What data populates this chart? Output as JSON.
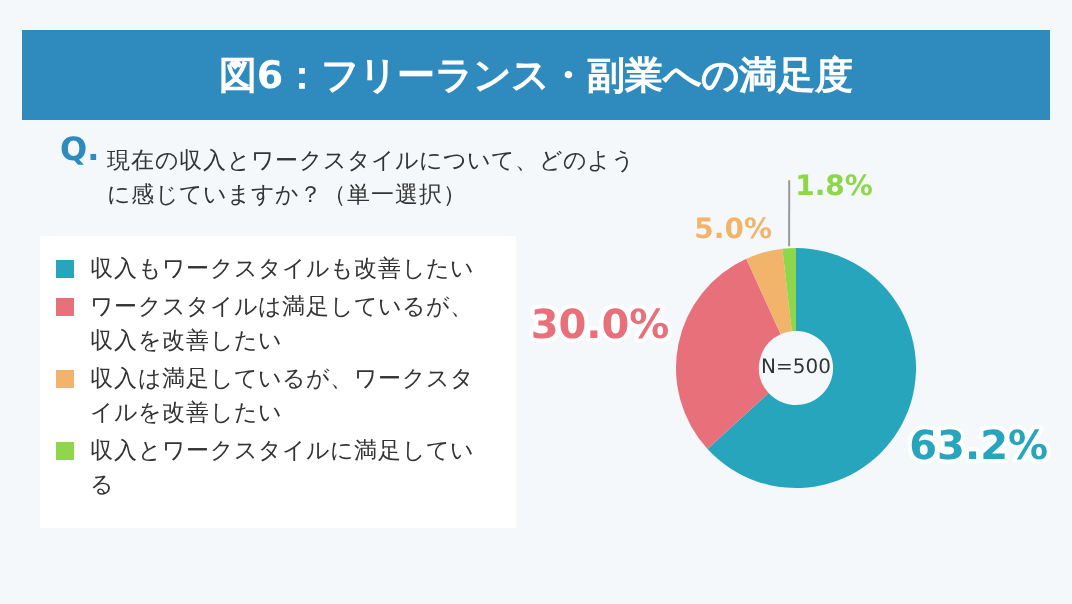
{
  "chart_data": {
    "type": "donut",
    "title": "図6：フリーランス・副業への満足度",
    "subtitle": "Q. 現在の収入とワークスタイルについて、どのように感じていますか？（単一選択）",
    "categories": [
      "収入もワークスタイルも改善したい",
      "ワークスタイルは満足しているが、収入を改善したい",
      "収入は満足しているが、ワークスタイルを改善したい",
      "収入とワークスタイルに満足している"
    ],
    "values": [
      63.2,
      30.0,
      5.0,
      1.8
    ],
    "value_labels": [
      "63.2%",
      "30.0%",
      "5.0%",
      "1.8%"
    ],
    "colors": [
      "#26a5bd",
      "#e8707a",
      "#f2b46a",
      "#8ed64a"
    ],
    "annotations": [
      "N=500"
    ],
    "legend": "left"
  }
}
